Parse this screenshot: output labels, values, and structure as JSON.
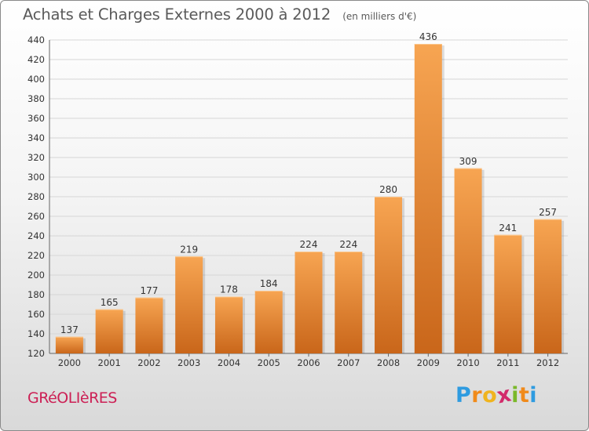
{
  "header": {
    "title": "Achats et Charges Externes 2000 à 2012",
    "subtitle": "(en milliers d'€)"
  },
  "footer": {
    "place": "GRéOLIèRES",
    "brand": [
      "P",
      "r",
      "o",
      "x",
      "i",
      "t",
      "i"
    ]
  },
  "colors": {
    "bar_top": "#f7a552",
    "bar_bottom": "#c9661a",
    "brand_letters": [
      "#2e9be0",
      "#f08a1a",
      "#f0b41e",
      "#d22a6a",
      "#7ab82a",
      "#f08a1a",
      "#2e9be0"
    ]
  },
  "chart_data": {
    "type": "bar",
    "title": "Achats et Charges Externes 2000 à 2012",
    "subtitle": "(en milliers d'€)",
    "categories": [
      "2000",
      "2001",
      "2002",
      "2003",
      "2004",
      "2005",
      "2006",
      "2007",
      "2008",
      "2009",
      "2010",
      "2011",
      "2012"
    ],
    "values": [
      137,
      165,
      177,
      219,
      178,
      184,
      224,
      224,
      280,
      436,
      309,
      241,
      257
    ],
    "ylim": [
      120,
      440
    ],
    "yticks": [
      120,
      140,
      160,
      180,
      200,
      220,
      240,
      260,
      280,
      300,
      320,
      340,
      360,
      380,
      400,
      420,
      440
    ],
    "grid": true,
    "data_labels": true
  }
}
